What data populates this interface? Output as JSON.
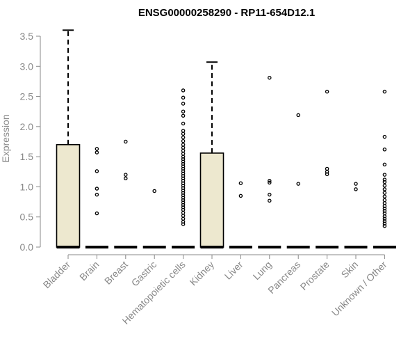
{
  "chart_data": {
    "type": "box",
    "title": "ENSG00000258290 - RP11-654D12.1",
    "xlabel": "",
    "ylabel": "Expression",
    "ylim": [
      0,
      3.6
    ],
    "yticks": [
      "0.0",
      "0.5",
      "1.0",
      "1.5",
      "2.0",
      "2.5",
      "3.0",
      "3.5"
    ],
    "grid": false,
    "box_color": "#ede8cf",
    "categories": [
      "Bladder",
      "Brain",
      "Breast",
      "Gastric",
      "Hematopoietic cells",
      "Kidney",
      "Liver",
      "Lung",
      "Pancreas",
      "Prostate",
      "Skin",
      "Unknown / Other"
    ],
    "boxes": [
      {
        "category": "Bladder",
        "min": 0,
        "q1": 0,
        "median": 0,
        "q3": 1.7,
        "max": 3.6,
        "outliers": []
      },
      {
        "category": "Brain",
        "min": 0,
        "q1": 0,
        "median": 0,
        "q3": 0,
        "max": 0,
        "outliers": [
          0.56,
          0.87,
          0.97,
          1.26,
          1.57,
          1.63
        ]
      },
      {
        "category": "Breast",
        "min": 0,
        "q1": 0,
        "median": 0,
        "q3": 0,
        "max": 0,
        "outliers": [
          1.14,
          1.2,
          1.75
        ]
      },
      {
        "category": "Gastric",
        "min": 0,
        "q1": 0,
        "median": 0,
        "q3": 0,
        "max": 0,
        "outliers": [
          0.93
        ]
      },
      {
        "category": "Hematopoietic cells",
        "min": 0,
        "q1": 0,
        "median": 0,
        "q3": 0,
        "max": 0,
        "outliers": [
          0.38,
          0.42,
          0.47,
          0.52,
          0.57,
          0.62,
          0.66,
          0.7,
          0.74,
          0.78,
          0.82,
          0.86,
          0.9,
          0.94,
          0.98,
          1.02,
          1.06,
          1.1,
          1.14,
          1.18,
          1.22,
          1.26,
          1.3,
          1.34,
          1.38,
          1.42,
          1.46,
          1.5,
          1.55,
          1.6,
          1.65,
          1.7,
          1.76,
          1.82,
          1.88,
          1.93,
          2.05,
          2.18,
          2.25,
          2.38,
          2.48,
          2.6
        ]
      },
      {
        "category": "Kidney",
        "min": 0,
        "q1": 0,
        "median": 0,
        "q3": 1.56,
        "max": 3.07,
        "outliers": []
      },
      {
        "category": "Liver",
        "min": 0,
        "q1": 0,
        "median": 0,
        "q3": 0,
        "max": 0,
        "outliers": [
          0.85,
          1.06
        ]
      },
      {
        "category": "Lung",
        "min": 0,
        "q1": 0,
        "median": 0,
        "q3": 0,
        "max": 0,
        "outliers": [
          0.77,
          0.87,
          1.07,
          1.1,
          2.81
        ]
      },
      {
        "category": "Pancreas",
        "min": 0,
        "q1": 0,
        "median": 0,
        "q3": 0,
        "max": 0,
        "outliers": [
          1.05,
          2.19
        ]
      },
      {
        "category": "Prostate",
        "min": 0,
        "q1": 0,
        "median": 0,
        "q3": 0,
        "max": 0,
        "outliers": [
          1.21,
          1.25,
          1.3,
          2.58
        ]
      },
      {
        "category": "Skin",
        "min": 0,
        "q1": 0,
        "median": 0,
        "q3": 0,
        "max": 0,
        "outliers": [
          0.96,
          1.05
        ]
      },
      {
        "category": "Unknown / Other",
        "min": 0,
        "q1": 0,
        "median": 0,
        "q3": 0,
        "max": 0,
        "outliers": [
          0.35,
          0.39,
          0.43,
          0.47,
          0.51,
          0.56,
          0.6,
          0.64,
          0.68,
          0.73,
          0.78,
          0.84,
          0.9,
          0.96,
          1.02,
          1.08,
          1.12,
          1.2,
          1.37,
          1.62,
          1.83,
          2.58
        ]
      }
    ]
  }
}
